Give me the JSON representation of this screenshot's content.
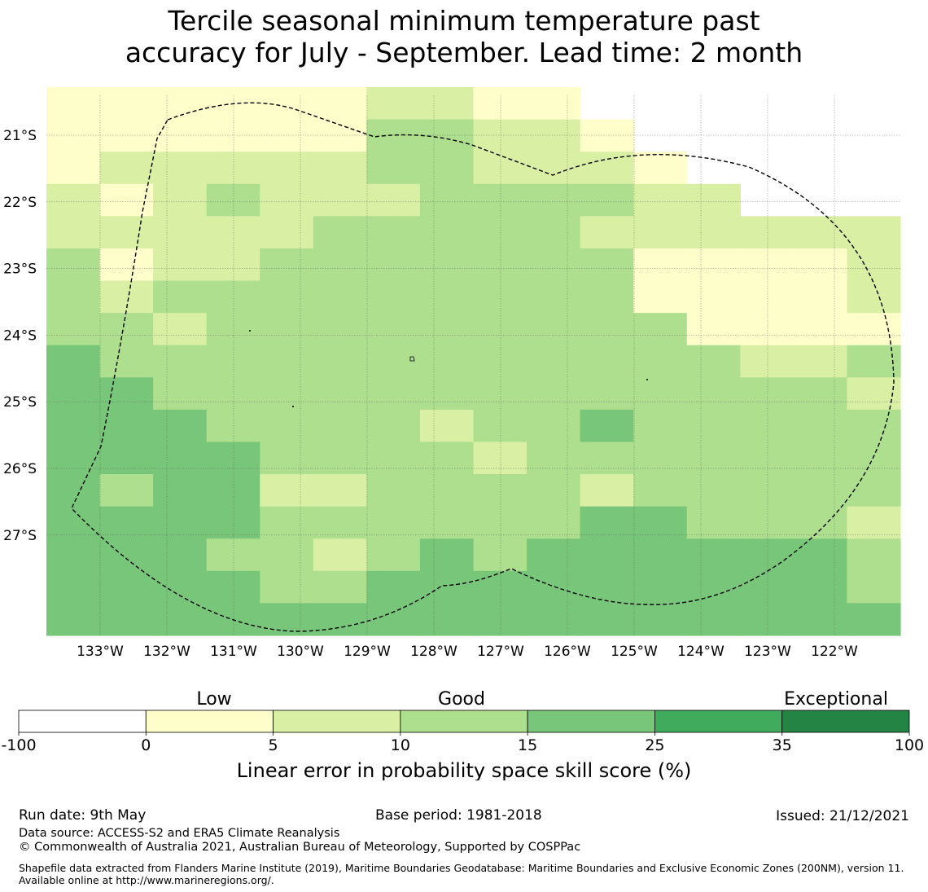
{
  "title": {
    "line1": "Tercile seasonal minimum temperature past",
    "line2": "accuracy for July - September. Lead time: 2 month"
  },
  "map": {
    "lon_labels": [
      "133°W",
      "132°W",
      "131°W",
      "130°W",
      "129°W",
      "128°W",
      "127°W",
      "126°W",
      "125°W",
      "124°W",
      "123°W",
      "122°W"
    ],
    "lat_labels": [
      "21°S",
      "22°S",
      "23°S",
      "24°S",
      "25°S",
      "26°S",
      "27°S"
    ],
    "grid": [
      "1111112211000009",
      "1111113322100009",
      "1222223322210000",
      "2123222333322000",
      "2222233333222222",
      "3122333333311112",
      "3233333333311112",
      "3323333333331111",
      "4333333333333223",
      "4433333333333332",
      "4443333233433333",
      "4444333323333333",
      "4344223333233333",
      "4444333333443332",
      "4443323434444443",
      "4444334444444443",
      "4444444444444444"
    ],
    "grid_colors": [
      "#ffffff",
      "#fefecb",
      "#d9efa3",
      "#addf8e",
      "#78c679"
    ]
  },
  "colorbar": {
    "category_labels": [
      "Low",
      "Good",
      "Exceptional"
    ],
    "ticks": [
      "-100",
      "0",
      "5",
      "10",
      "15",
      "25",
      "35",
      "100"
    ],
    "colors": [
      "#ffffff",
      "#fefecb",
      "#d9efa3",
      "#addf8e",
      "#78c679",
      "#41ab5d",
      "#238443"
    ],
    "label": "Linear error in probability space skill score (%)"
  },
  "footer": {
    "run_date": "Run date: 9th May",
    "base_period": "Base period: 1981-2018",
    "issued": "Issued: 21/12/2021",
    "data_source": "Data source: ACCESS-S2 and ERA5 Climate Reanalysis",
    "copyright": "© Commonwealth of Australia 2021, Australian Bureau of Meteorology, Supported by COSPPac",
    "shapefile": "Shapefile data extracted from Flanders Marine Institute (2019), Maritime Boundaries Geodatabase: Maritime Boundaries and Exclusive Economic Zones (200NM), version 11. Available online at http://www.marineregions.org/."
  }
}
